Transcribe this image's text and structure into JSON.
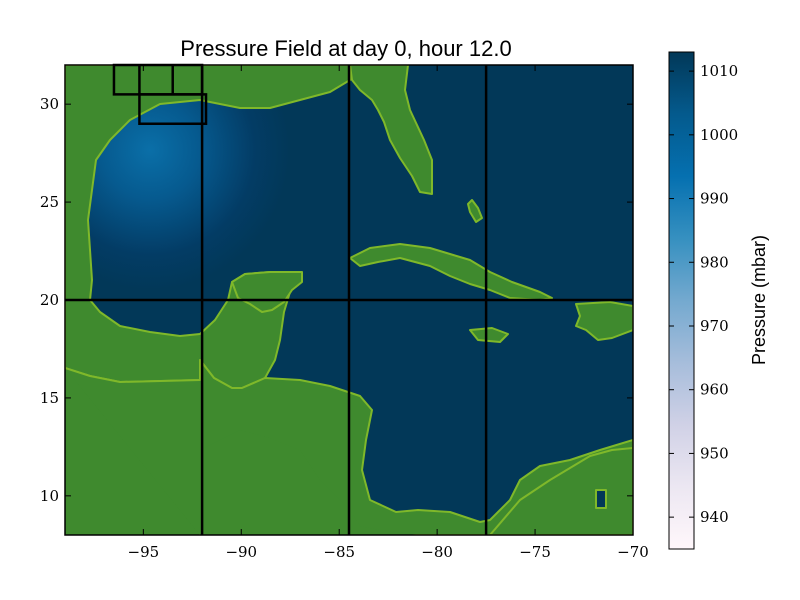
{
  "chart_data": {
    "type": "heatmap",
    "title": "Pressure Field at day 0, hour 12.0",
    "xlim": [
      -99,
      -70
    ],
    "ylim": [
      8,
      32
    ],
    "x_ticks": [
      -95,
      -90,
      -85,
      -80,
      -75,
      -70
    ],
    "x_tick_labels": [
      "−95",
      "−90",
      "−85",
      "−80",
      "−75",
      "−70"
    ],
    "y_ticks": [
      10,
      15,
      20,
      25,
      30
    ],
    "y_tick_labels": [
      "10",
      "15",
      "20",
      "25",
      "30"
    ],
    "grid": false,
    "field": {
      "quantity": "Pressure",
      "units": "mbar",
      "ambient_value": 1013,
      "low_center": {
        "lon": -95.0,
        "lat": 29.0,
        "min_value": 990
      }
    },
    "land_color": "#3f8a2e",
    "land_edge_color": "#7fb82a",
    "colormap": [
      "#fff7fb",
      "#ece7f2",
      "#d0d1e6",
      "#a6bddb",
      "#74a9cf",
      "#3690c0",
      "#0570b0",
      "#045a8d",
      "#023858"
    ],
    "grid_lines": {
      "lon": [
        -92,
        -84.5,
        -77.5
      ],
      "lat": [
        20
      ]
    },
    "nested_boxes": [
      {
        "lon": [
          -96.5,
          -92.0
        ],
        "lat": [
          30.5,
          32.0
        ]
      },
      {
        "lon": [
          -95.2,
          -91.8
        ],
        "lat": [
          29.0,
          30.5
        ]
      },
      {
        "lon": [
          -95.2,
          -95.2
        ],
        "lat": [
          30.5,
          32.0
        ]
      },
      {
        "lon": [
          -93.5,
          -93.5
        ],
        "lat": [
          30.5,
          32.0
        ]
      }
    ],
    "colorbar": {
      "label": "Pressure (mbar)",
      "range": [
        935,
        1013
      ],
      "ticks": [
        940,
        950,
        960,
        970,
        980,
        990,
        1000,
        1010
      ],
      "tick_labels": [
        "940",
        "950",
        "960",
        "970",
        "980",
        "990",
        "1000",
        "1010"
      ]
    }
  }
}
